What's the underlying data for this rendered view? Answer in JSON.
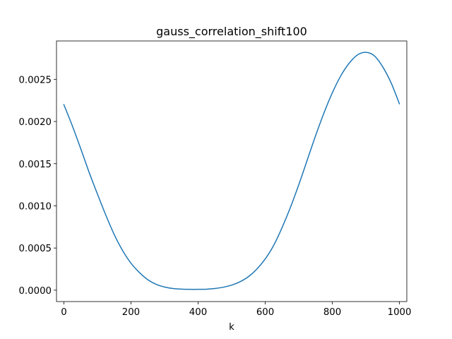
{
  "chart_data": {
    "type": "line",
    "title": "gauss_correlation_shift100",
    "xlabel": "k",
    "ylabel": "",
    "xlim": [
      -22,
      1022
    ],
    "ylim": [
      -0.000135,
      0.002955
    ],
    "xticks": [
      0,
      200,
      400,
      600,
      800,
      1000
    ],
    "xtick_labels": [
      "0",
      "200",
      "400",
      "600",
      "800",
      "1000"
    ],
    "yticks": [
      0.0,
      0.0005,
      0.001,
      0.0015,
      0.002,
      0.0025
    ],
    "ytick_labels": [
      "0.0000",
      "0.0005",
      "0.0010",
      "0.0015",
      "0.0020",
      "0.0025"
    ],
    "grid": false,
    "series": [
      {
        "color": "#1f77b4",
        "x": [
          0,
          25,
          50,
          75,
          100,
          125,
          150,
          175,
          200,
          225,
          250,
          275,
          300,
          325,
          350,
          375,
          400,
          425,
          450,
          475,
          500,
          525,
          550,
          575,
          600,
          625,
          650,
          675,
          700,
          725,
          750,
          775,
          800,
          825,
          850,
          875,
          900,
          925,
          950,
          975,
          1000
        ],
        "y": [
          0.0022,
          0.00195,
          0.00168,
          0.0014,
          0.00114,
          0.00089,
          0.00066,
          0.00047,
          0.00032,
          0.00021,
          0.000125,
          7e-05,
          3.8e-05,
          2e-05,
          1.3e-05,
          1e-05,
          1e-05,
          1.2e-05,
          2e-05,
          3.5e-05,
          6e-05,
          0.0001,
          0.00016,
          0.00025,
          0.00037,
          0.00053,
          0.00074,
          0.00098,
          0.00125,
          0.00154,
          0.00183,
          0.0021,
          0.00234,
          0.00254,
          0.00269,
          0.00279,
          0.00282,
          0.00278,
          0.00265,
          0.00246,
          0.00221
        ]
      }
    ]
  }
}
